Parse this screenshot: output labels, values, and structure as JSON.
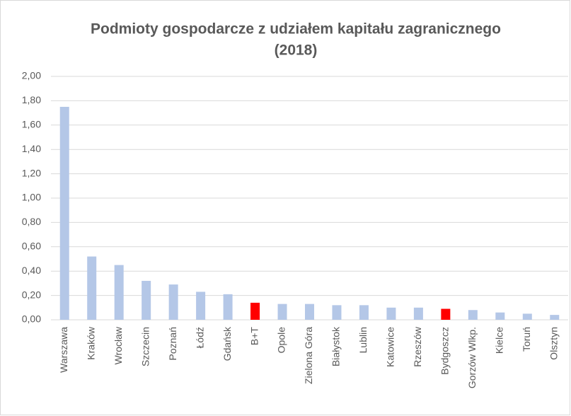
{
  "chart_data": {
    "type": "bar",
    "title": [
      "Podmioty gospodarcze z udziałem kapitału zagranicznego",
      "(2018)"
    ],
    "categories": [
      "Warszawa",
      "Kraków",
      "Wrocław",
      "Szczecin",
      "Poznań",
      "Łódź",
      "Gdańsk",
      "B+T",
      "Opole",
      "Zielona Góra",
      "Białystok",
      "Lublin",
      "Katowice",
      "Rzeszów",
      "Bydgoszcz",
      "Gorzów Wlkp.",
      "Kielce",
      "Toruń",
      "Olsztyn"
    ],
    "values": [
      1.75,
      0.52,
      0.45,
      0.32,
      0.29,
      0.23,
      0.21,
      0.14,
      0.13,
      0.13,
      0.12,
      0.12,
      0.1,
      0.1,
      0.09,
      0.08,
      0.06,
      0.05,
      0.04
    ],
    "colors": [
      "#b4c7e7",
      "#b4c7e7",
      "#b4c7e7",
      "#b4c7e7",
      "#b4c7e7",
      "#b4c7e7",
      "#b4c7e7",
      "#ff0000",
      "#b4c7e7",
      "#b4c7e7",
      "#b4c7e7",
      "#b4c7e7",
      "#b4c7e7",
      "#b4c7e7",
      "#ff0000",
      "#b4c7e7",
      "#b4c7e7",
      "#b4c7e7",
      "#b4c7e7"
    ],
    "ylim": [
      0,
      2
    ],
    "yticks": [
      {
        "value": 0,
        "label": "0,00"
      },
      {
        "value": 0.2,
        "label": "0,20"
      },
      {
        "value": 0.4,
        "label": "0,40"
      },
      {
        "value": 0.6,
        "label": "0,60"
      },
      {
        "value": 0.8,
        "label": "0,80"
      },
      {
        "value": 1,
        "label": "1,00"
      },
      {
        "value": 1.2,
        "label": "1,20"
      },
      {
        "value": 1.4,
        "label": "1,40"
      },
      {
        "value": 1.6,
        "label": "1,60"
      },
      {
        "value": 1.8,
        "label": "1,80"
      },
      {
        "value": 2,
        "label": "2,00"
      }
    ],
    "grid": true
  }
}
